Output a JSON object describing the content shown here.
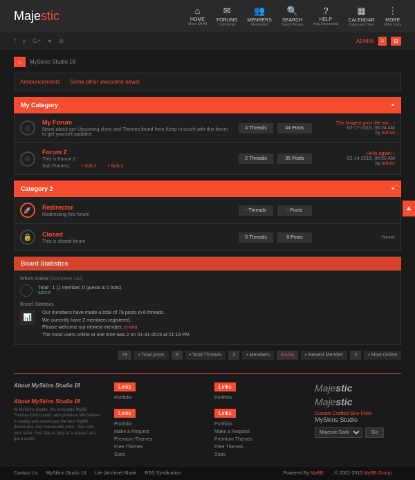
{
  "brand": {
    "pre": "Maje",
    "accent": "stic"
  },
  "nav": [
    {
      "icon": "⌂",
      "label": "HOME",
      "sub": "Show Off All"
    },
    {
      "icon": "✉",
      "label": "FORUMS",
      "sub": "Community"
    },
    {
      "icon": "👥",
      "label": "MEMBERS",
      "sub": "Memberlist"
    },
    {
      "icon": "🔍",
      "label": "SEARCH",
      "sub": "Search Forum"
    },
    {
      "icon": "?",
      "label": "HELP",
      "sub": "Help Documents"
    },
    {
      "icon": "▦",
      "label": "CALENDAR",
      "sub": "Dates and Time"
    },
    {
      "icon": "⋮",
      "label": "MORE",
      "sub": "More Links"
    }
  ],
  "admin_label": "ADMIN",
  "breadcrumb": "MySkins Studio 18",
  "announcements": {
    "a1": "Announcements",
    "a2": "Some other awesome news!"
  },
  "categories": [
    {
      "title": "My Category",
      "forums": [
        {
          "icon": "◎",
          "title": "My Forum",
          "desc": "News about our Upcoming skins and Themes found here.Keep in touch with this forum to get yourself updated.",
          "threads": "4 Threads",
          "posts": "44 Posts",
          "lp_title": "The longest post title wit... ›",
          "lp_date": "02-17-2015, 06:24 AM",
          "lp_by": "by ",
          "lp_user": "admin"
        },
        {
          "icon": "◎",
          "title": "Forum 2",
          "desc": "This is Forum 2",
          "subforums_label": "Sub Forums:",
          "sub1": "Sub 1",
          "sub2": "Sub 2",
          "threads": "2 Threads",
          "posts": "35 Posts",
          "lp_title": "Hello again! ›",
          "lp_date": "02-14-2015, 06:50 AM",
          "lp_by": "by ",
          "lp_user": "admin"
        }
      ]
    },
    {
      "title": "Category 2",
      "forums": [
        {
          "icon": "🚀",
          "iconclass": "rocket",
          "title": "Redirector",
          "desc": "Redirecting this forum",
          "threads": "- Threads",
          "posts": "- Posts",
          "lp_title": "",
          "lp_date": "",
          "lp_by": "",
          "lp_user": ""
        },
        {
          "icon": "🔒",
          "iconclass": "lock",
          "title": "Closed",
          "desc": "This is closed forum",
          "threads": "0 Threads",
          "posts": "0 Posts",
          "lp_title": "",
          "lp_date": "Never",
          "lp_by": "",
          "lp_user": ""
        }
      ]
    }
  ],
  "boardstats_title": "Board Statistics",
  "who_online": "Who's Online",
  "complete": "[Complete List]",
  "online_total": "Total : 1 (1 member, 0 guests & 0 bots).",
  "online_user": "admin",
  "bstats_header": "Board Statistics",
  "bstats": {
    "l1": "Our members have made a total of 79 posts in 6 threads.",
    "l2": "We currently have 2 members registered.",
    "l3a": "Please welcome our newest member, ",
    "l3b": "envira",
    "l4": "The most users online at one time was 2 on 01-31-2015 at 01:19 PM"
  },
  "statbar": [
    {
      "n": "79",
      "t": "Total posts"
    },
    {
      "n": "6",
      "t": "Total Threads"
    },
    {
      "n": "2",
      "t": "Members"
    },
    {
      "n": "envira",
      "t": "Newest Member",
      "hl": true
    },
    {
      "n": "2",
      "t": "Most Online"
    }
  ],
  "footer": {
    "about1_h": "About MySkins Studio 18",
    "about2_h": "About MySkins Studio 18",
    "about2_p": "At MySkins Studio, We procreate MyBB Themes both custom and premium.We believe in quality and assure you the best MyBB theme at a very reasonable price , that suits your taste.\nFeel free to drop in a request and get a quote.",
    "links_h": "Links",
    "links": [
      "Portfolio",
      "Make a Request",
      "Premium Themes",
      "Free Themes",
      "Stats"
    ],
    "custom": "Custom Crafted Skin From",
    "studio": "MySkins Studio",
    "theme": "Majestic-Dark",
    "go": "Go"
  },
  "bottom": {
    "links": [
      "Contact Us",
      "MySkins Studio 18",
      "Lite (Archive) Mode",
      "RSS Syndication"
    ],
    "powered": "Powered By ",
    "mybb": "MyBB",
    "copy": ", © 2002-2015 ",
    "grp": "MyBB Group."
  }
}
